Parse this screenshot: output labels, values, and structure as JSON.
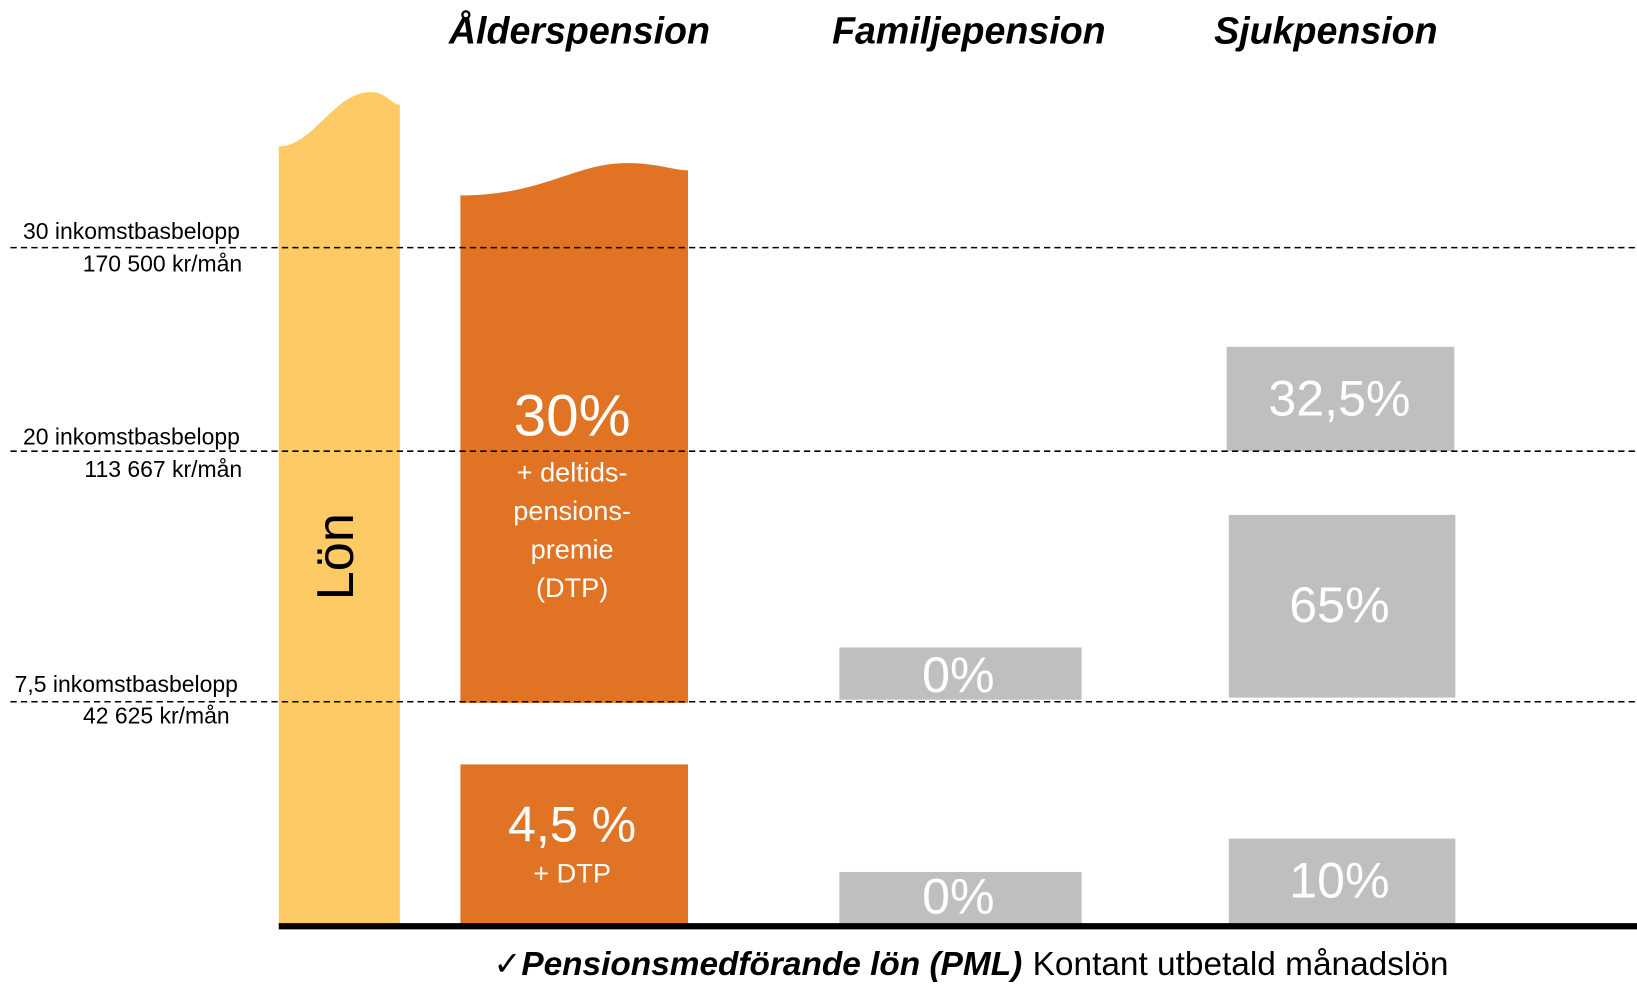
{
  "headers": [
    "Ålderspension",
    "Familjepension",
    "Sjukpension"
  ],
  "levels": [
    {
      "label": "30 inkomstbasbelopp",
      "amount": "170 500 kr/mån"
    },
    {
      "label": "20 inkomstbasbelopp",
      "amount": "113 667 kr/mån"
    },
    {
      "label": "7,5 inkomstbasbelopp",
      "amount": "42 625 kr/mån"
    }
  ],
  "salary_label": "Lön",
  "alderspension": {
    "upper": {
      "rate": "30%",
      "note": [
        "+ deltids-",
        "pensions-",
        "premie",
        "(DTP)"
      ]
    },
    "lower": {
      "rate": "4,5 %",
      "note": "+ DTP"
    }
  },
  "familjepension": {
    "upper": "0%",
    "lower": "0%"
  },
  "sjukpension": {
    "top": "32,5%",
    "middle": "65%",
    "lower": "10%"
  },
  "footer": {
    "check": "✓",
    "bold": "Pensionsmedförande lön (PML)",
    "text": "Kontant utbetald månadslön"
  }
}
